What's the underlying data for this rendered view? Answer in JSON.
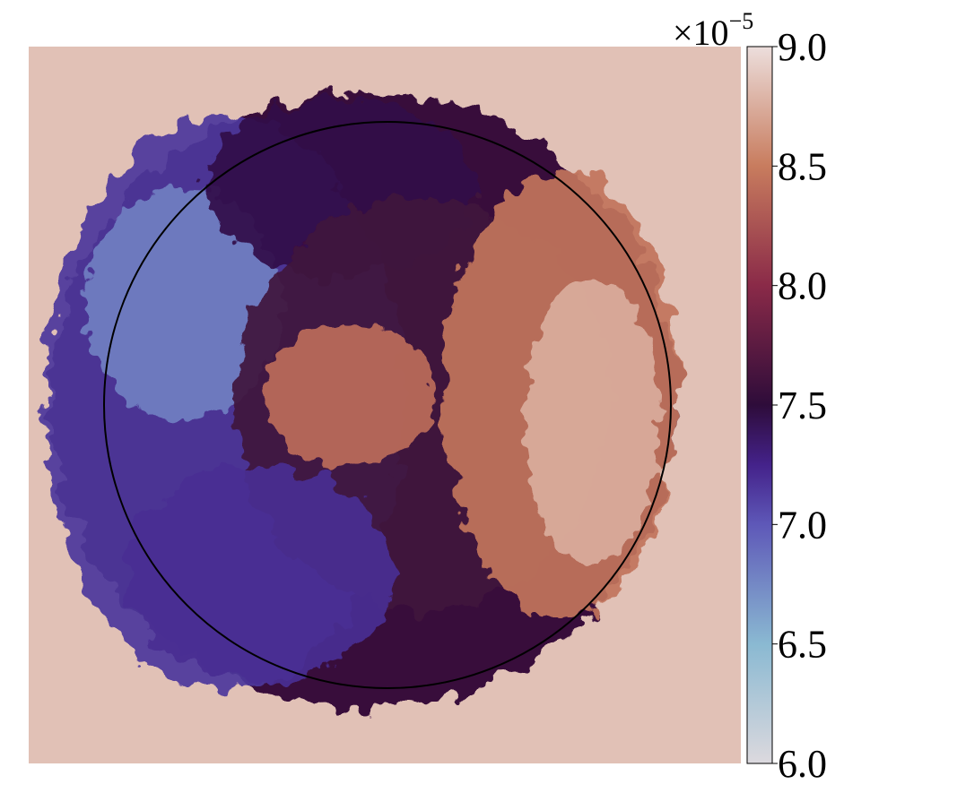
{
  "chart_data": {
    "type": "heatmap",
    "title": "",
    "xlabel": "",
    "ylabel": "",
    "colorbar": {
      "range": [
        6.0,
        9.0
      ],
      "ticks": [
        6.0,
        6.5,
        7.0,
        7.5,
        8.0,
        8.5,
        9.0
      ],
      "tick_labels": [
        "6.0",
        "6.5",
        "7.0",
        "7.5",
        "8.0",
        "8.5",
        "9.0"
      ],
      "multiplier": "×10",
      "multiplier_exponent": "−5",
      "colormap_stops": [
        {
          "value": 6.0,
          "color": "#dcd9de"
        },
        {
          "value": 6.5,
          "color": "#8ab9d2"
        },
        {
          "value": 7.0,
          "color": "#5e58b8"
        },
        {
          "value": 7.25,
          "color": "#44228a"
        },
        {
          "value": 7.5,
          "color": "#2e0c3a"
        },
        {
          "value": 8.0,
          "color": "#8a2a48"
        },
        {
          "value": 8.5,
          "color": "#c87c5e"
        },
        {
          "value": 9.0,
          "color": "#ecdedc"
        }
      ]
    },
    "background_value": 8.85,
    "overlay": "circle",
    "regions": [
      {
        "label": "left",
        "value": 7.15
      },
      {
        "label": "upper-left streak",
        "value": 6.8
      },
      {
        "label": "top",
        "value": 7.45
      },
      {
        "label": "center",
        "value": 7.6
      },
      {
        "label": "center blob",
        "value": 8.4
      },
      {
        "label": "right",
        "value": 8.45
      },
      {
        "label": "right edge",
        "value": 8.75
      },
      {
        "label": "bottom-left",
        "value": 7.2
      }
    ]
  }
}
